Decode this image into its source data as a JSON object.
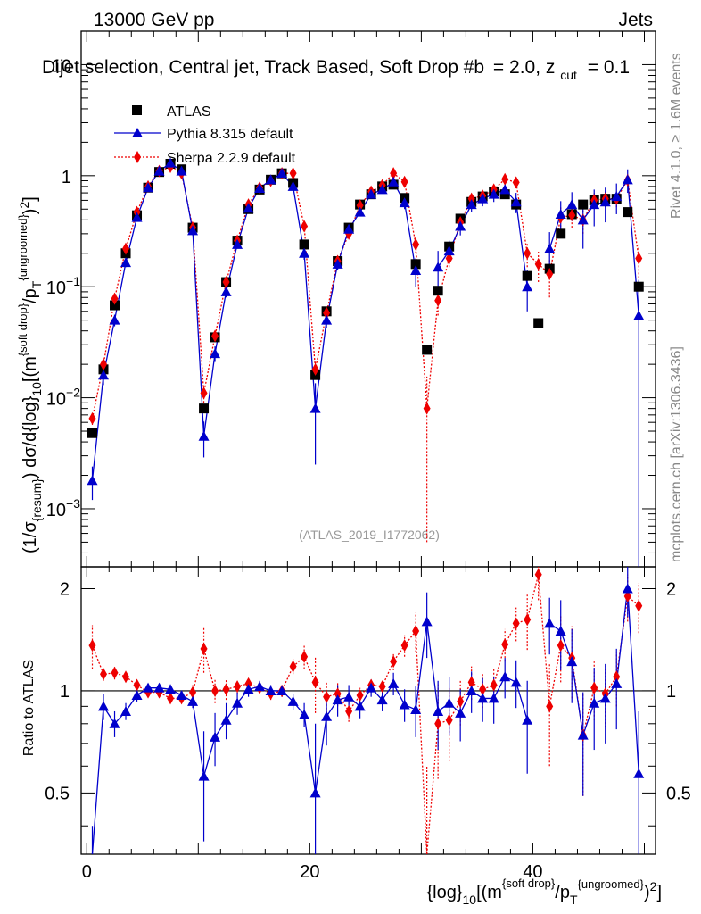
{
  "header": {
    "left": "13000 GeV pp",
    "right": "Jets"
  },
  "side_labels": {
    "rivet": "Rivet 4.1.0, ≥ 1.6M events",
    "mcplots": "mcplots.cern.ch [arXiv:1306.3436]"
  },
  "chart_data": {
    "type": "scatter",
    "title": "Dijet selection, Central jet, Track Based, Soft Drop #b = 2.0, z_cut = 0.1",
    "title_main": "Dijet selection, Central jet, Track Based, Soft Drop #b",
    "title_eq": "= 2.0, z",
    "title_sub": "cut",
    "title_tail": "= 0.1",
    "analysis_id": "(ATLAS_2019_I1772062)",
    "ylabel": "(1/σ_{resum}) dσ/d{log}_{10}[(m^{soft drop}/p_T^{ungroomed})^2]",
    "ylabel_parts": {
      "p1": "(1/σ",
      "s1": "{resum}",
      "p2": ") dσ/d{log}",
      "s2": "10",
      "p3": "[(m",
      "s3": "{soft drop}",
      "p4": "/p",
      "s4": "T",
      "s5": "{ungroomed}",
      "p5": ")",
      "s6": "2",
      "p6": "]"
    },
    "xlabel": "{log}_{10}[(m^{soft drop}/p_T^{ungroomed})^2]",
    "xlabel_parts": {
      "p1": "{log}",
      "s1": "10",
      "p2": "[(m",
      "s2": "{soft drop}",
      "p3": "/p",
      "s3": "T",
      "s4": "{ungroomed}",
      "p4": ")",
      "s5": "2",
      "p5": "]"
    },
    "ratio_ylabel": "Ratio to ATLAS",
    "xlim": [
      -0.5,
      51
    ],
    "ylim": [
      0.0003,
      20
    ],
    "ratio_ylim": [
      0.33,
      2.32
    ],
    "x_ticks": [
      0,
      20,
      40
    ],
    "x_tick_labels": [
      "0",
      "20",
      "40"
    ],
    "y_ticks": [
      0.001,
      0.01,
      0.1,
      1,
      10
    ],
    "y_tick_labels": [
      {
        "base": "10",
        "exp": "−3"
      },
      {
        "base": "10",
        "exp": "−2"
      },
      {
        "base": "10",
        "exp": "−1"
      },
      {
        "base": "1",
        "exp": ""
      },
      {
        "base": "10",
        "exp": ""
      }
    ],
    "ratio_y_ticks": [
      0.5,
      1,
      2
    ],
    "ratio_y_tick_labels": [
      "0.5",
      "1",
      "2"
    ],
    "x": [
      0.5,
      1.5,
      2.5,
      3.5,
      4.5,
      5.5,
      6.5,
      7.5,
      8.5,
      9.5,
      10.5,
      11.5,
      12.5,
      13.5,
      14.5,
      15.5,
      16.5,
      17.5,
      18.5,
      19.5,
      20.5,
      21.5,
      22.5,
      23.5,
      24.5,
      25.5,
      26.5,
      27.5,
      28.5,
      29.5,
      30.5,
      31.5,
      32.5,
      33.5,
      34.5,
      35.5,
      36.5,
      37.5,
      38.5,
      39.5,
      40.5,
      41.5,
      42.5,
      43.5,
      44.5,
      45.5,
      46.5,
      47.5,
      48.5,
      49.5
    ],
    "series": [
      {
        "name": "ATLAS",
        "color": "#000000",
        "marker": "square",
        "line": "none",
        "values": [
          0.0048,
          0.018,
          0.068,
          0.2,
          0.44,
          0.78,
          1.08,
          1.28,
          1.14,
          0.34,
          0.008,
          0.035,
          0.11,
          0.26,
          0.5,
          0.75,
          0.92,
          1.05,
          0.86,
          0.24,
          0.016,
          0.06,
          0.17,
          0.34,
          0.55,
          0.68,
          0.8,
          0.83,
          0.63,
          0.16,
          0.027,
          0.092,
          0.23,
          0.41,
          0.58,
          0.65,
          0.72,
          0.68,
          0.55,
          0.125,
          0.047,
          0.145,
          0.3,
          0.45,
          0.55,
          0.6,
          0.62,
          0.62,
          0.47,
          0.1
        ]
      },
      {
        "name": "Pythia 8.315 default",
        "color": "#0000cc",
        "marker": "triangle",
        "line": "solid",
        "values": [
          0.0018,
          0.016,
          0.05,
          0.165,
          0.42,
          0.78,
          1.1,
          1.3,
          1.1,
          0.32,
          0.0045,
          0.025,
          0.09,
          0.24,
          0.51,
          0.77,
          0.92,
          1.05,
          0.8,
          0.2,
          0.008,
          0.05,
          0.16,
          0.33,
          0.47,
          0.68,
          0.75,
          0.88,
          0.57,
          0.14,
          null,
          0.15,
          0.21,
          0.35,
          0.55,
          0.62,
          0.68,
          0.75,
          0.58,
          0.1,
          null,
          0.22,
          0.45,
          0.55,
          0.4,
          0.55,
          0.58,
          0.65,
          0.92,
          0.055
        ],
        "errors": [
          0.0006,
          0.003,
          0.006,
          0.015,
          0.03,
          0.05,
          0.06,
          0.07,
          0.06,
          0.03,
          0.0016,
          0.004,
          0.01,
          0.02,
          0.03,
          0.05,
          0.05,
          0.06,
          0.06,
          0.025,
          0.0055,
          0.008,
          0.02,
          0.03,
          0.04,
          0.05,
          0.06,
          0.07,
          0.07,
          0.04,
          null,
          0.06,
          0.05,
          0.06,
          0.08,
          0.09,
          0.1,
          0.11,
          0.12,
          0.04,
          null,
          0.09,
          0.14,
          0.16,
          0.18,
          0.2,
          0.2,
          0.2,
          0.22,
          0.06
        ]
      },
      {
        "name": "Sherpa 2.2.9 default",
        "color": "#ee0000",
        "marker": "diamond",
        "line": "dotted",
        "values": [
          0.0065,
          0.02,
          0.078,
          0.22,
          0.47,
          0.8,
          1.1,
          1.2,
          1.05,
          0.34,
          0.011,
          0.036,
          0.11,
          0.26,
          0.55,
          0.78,
          0.9,
          1.05,
          1.05,
          0.35,
          0.018,
          0.058,
          0.17,
          0.3,
          0.54,
          0.72,
          0.82,
          1.05,
          0.88,
          0.24,
          0.008,
          0.075,
          0.18,
          0.38,
          0.62,
          0.66,
          0.75,
          0.93,
          0.87,
          0.2,
          0.16,
          0.13,
          0.42,
          0.44,
          0.4,
          0.6,
          0.62,
          0.62,
          0.91,
          0.18
        ],
        "errors": [
          0.0008,
          0.002,
          0.006,
          0.015,
          0.02,
          0.03,
          0.04,
          0.05,
          0.05,
          0.02,
          0.002,
          0.004,
          0.008,
          0.015,
          0.03,
          0.04,
          0.05,
          0.05,
          0.06,
          0.03,
          0.003,
          0.006,
          0.012,
          0.02,
          0.03,
          0.04,
          0.05,
          0.06,
          0.06,
          0.04,
          0.0075,
          0.02,
          0.03,
          0.05,
          0.06,
          0.07,
          0.08,
          0.1,
          0.1,
          0.05,
          0.05,
          0.05,
          0.1,
          0.1,
          0.1,
          0.1,
          0.1,
          0.1,
          0.12,
          0.06
        ]
      }
    ],
    "ratio": [
      {
        "name": "Pythia 8.315 default",
        "color": "#0000cc",
        "values": [
          0.3,
          0.9,
          0.8,
          0.87,
          0.97,
          1.02,
          1.02,
          1.01,
          0.97,
          0.93,
          0.56,
          0.73,
          0.82,
          0.92,
          1.01,
          1.03,
          1.0,
          1.0,
          0.93,
          0.85,
          0.5,
          0.84,
          0.94,
          0.96,
          0.9,
          1.02,
          0.94,
          1.05,
          0.91,
          0.88,
          1.6,
          0.87,
          0.92,
          0.86,
          1.0,
          0.95,
          0.95,
          1.1,
          1.06,
          0.82,
          null,
          1.58,
          1.5,
          1.22,
          0.74,
          0.92,
          0.95,
          1.05,
          2.0,
          0.57
        ],
        "errors": [
          0.1,
          0.08,
          0.07,
          0.05,
          0.04,
          0.03,
          0.03,
          0.03,
          0.03,
          0.04,
          0.2,
          0.13,
          0.1,
          0.07,
          0.05,
          0.04,
          0.04,
          0.04,
          0.05,
          0.07,
          0.3,
          0.15,
          0.1,
          0.08,
          0.07,
          0.06,
          0.07,
          0.08,
          0.1,
          0.15,
          0.35,
          0.2,
          0.18,
          0.15,
          0.14,
          0.14,
          0.15,
          0.15,
          0.17,
          0.25,
          null,
          0.3,
          0.35,
          0.3,
          0.25,
          0.25,
          0.25,
          0.28,
          0.35,
          0.3
        ]
      },
      {
        "name": "Sherpa 2.2.9 default",
        "color": "#ee0000",
        "values": [
          1.36,
          1.12,
          1.13,
          1.1,
          1.04,
          0.99,
          0.99,
          0.95,
          0.95,
          0.99,
          1.33,
          1.0,
          1.01,
          1.03,
          1.05,
          1.02,
          0.98,
          1.0,
          1.18,
          1.26,
          1.06,
          0.96,
          0.98,
          0.87,
          0.97,
          1.04,
          1.03,
          1.22,
          1.36,
          1.5,
          0.3,
          0.8,
          0.82,
          0.93,
          1.06,
          1.01,
          1.04,
          1.37,
          1.58,
          1.62,
          2.2,
          0.9,
          1.36,
          1.25,
          0.74,
          1.02,
          0.98,
          1.1,
          1.9,
          1.78
        ],
        "errors": [
          0.2,
          0.05,
          0.05,
          0.04,
          0.03,
          0.03,
          0.03,
          0.03,
          0.03,
          0.05,
          0.2,
          0.08,
          0.07,
          0.05,
          0.05,
          0.04,
          0.04,
          0.04,
          0.06,
          0.1,
          0.2,
          0.1,
          0.08,
          0.06,
          0.05,
          0.05,
          0.05,
          0.07,
          0.1,
          0.2,
          0.3,
          0.25,
          0.2,
          0.14,
          0.12,
          0.12,
          0.12,
          0.15,
          0.18,
          0.3,
          0.35,
          0.3,
          0.3,
          0.3,
          0.25,
          0.2,
          0.2,
          0.2,
          0.3,
          0.3
        ]
      }
    ],
    "legend": [
      "ATLAS",
      "Pythia 8.315 default",
      "Sherpa 2.2.9 default"
    ],
    "legend_position": "top-left"
  }
}
